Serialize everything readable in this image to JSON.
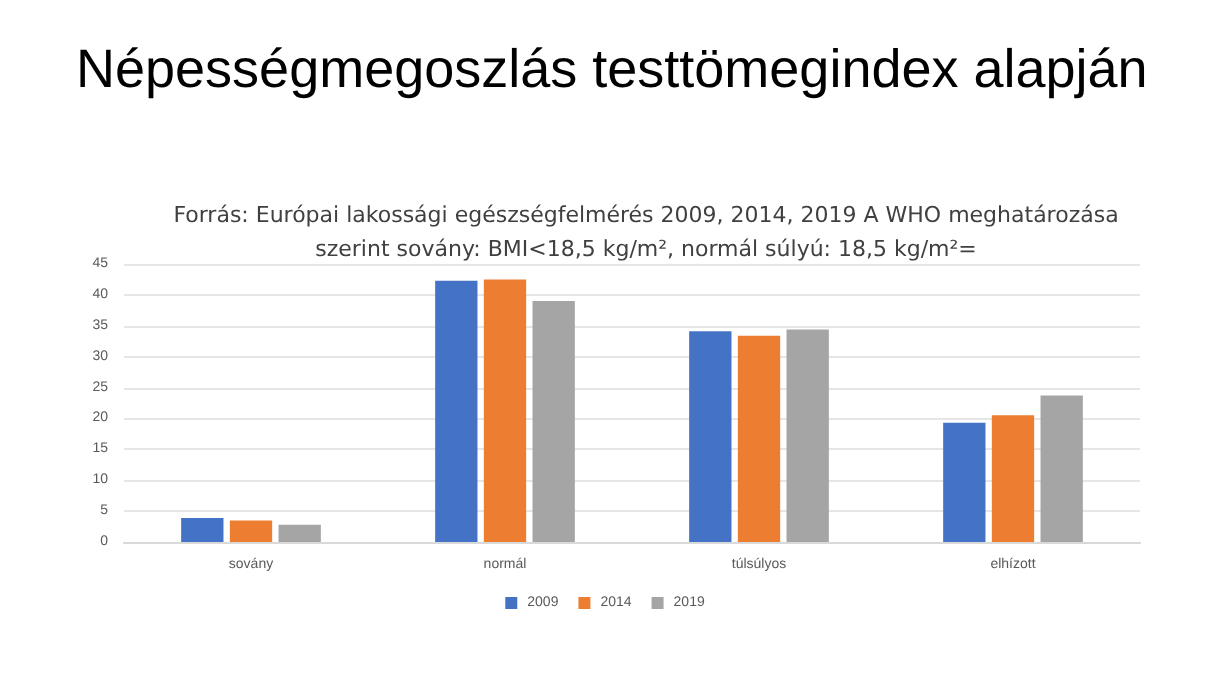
{
  "chart_data": {
    "type": "bar",
    "title": "Népességmegoszlás testtömegindex alapján",
    "subtitle": "Forrás: Európai lakossági egészségfelmérés 2009, 2014, 2019 A WHO meghatározása\nszerint sovány: BMI<18,5 kg/m², normál súlyú: 18,5 kg/m²=",
    "categories": [
      "sovány",
      "normál",
      "túlsúlyos",
      "elhízott"
    ],
    "series": [
      {
        "name": "2009",
        "color": "#4472c4",
        "values": [
          3.9,
          42.3,
          34.1,
          19.3
        ]
      },
      {
        "name": "2014",
        "color": "#ed7d31",
        "values": [
          3.5,
          42.5,
          33.4,
          20.5
        ]
      },
      {
        "name": "2019",
        "color": "#a5a5a5",
        "values": [
          2.8,
          39.0,
          34.4,
          23.7
        ]
      }
    ],
    "ylim": [
      0,
      45
    ],
    "yticks": [
      0,
      5,
      10,
      15,
      20,
      25,
      30,
      35,
      40,
      45
    ],
    "grid": "y",
    "legend": "bottom"
  }
}
